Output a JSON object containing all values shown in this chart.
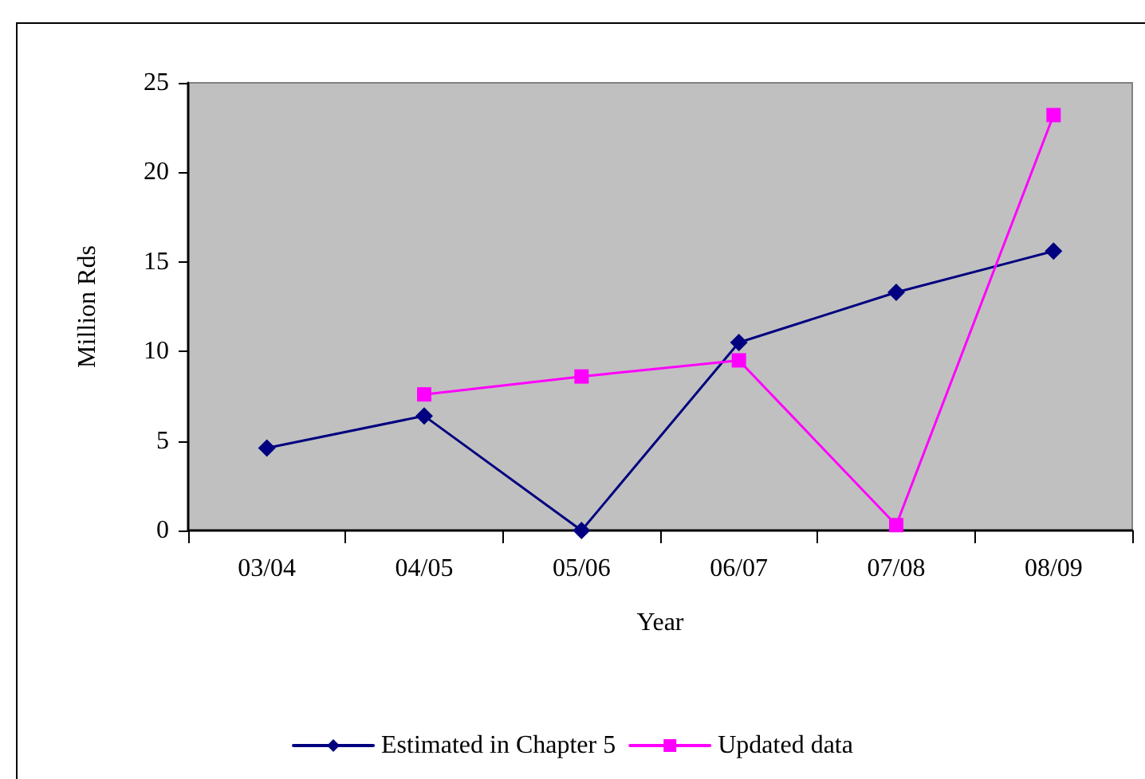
{
  "chart_data": {
    "type": "line",
    "xlabel": "Year",
    "ylabel": "Million Rds",
    "categories": [
      "03/04",
      "04/05",
      "05/06",
      "06/07",
      "07/08",
      "08/09"
    ],
    "series": [
      {
        "name": "Estimated in Chapter 5",
        "color": "#000080",
        "marker": "diamond",
        "values": [
          4.6,
          6.4,
          0,
          10.5,
          13.3,
          15.6
        ]
      },
      {
        "name": "Updated data",
        "color": "#ff00ff",
        "marker": "square",
        "values": [
          null,
          7.6,
          8.6,
          9.5,
          0.3,
          23.2
        ]
      }
    ],
    "ylim": [
      0,
      25
    ],
    "yticks": [
      0,
      5,
      10,
      15,
      20,
      25
    ],
    "grid": false,
    "legend": "bottom",
    "line_style": "solid"
  }
}
